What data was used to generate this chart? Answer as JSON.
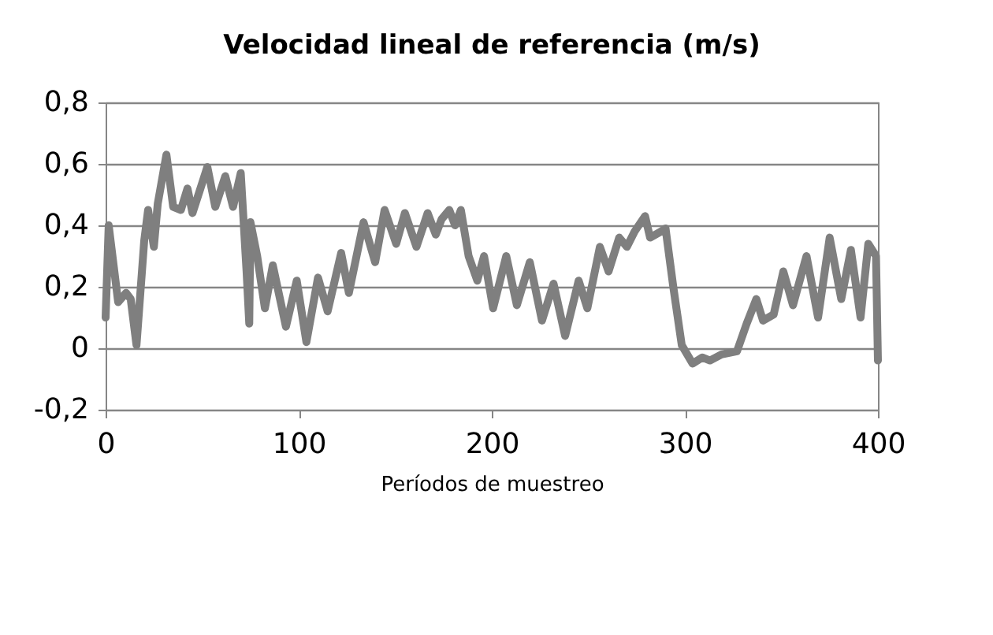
{
  "chart_data": {
    "type": "line",
    "title": "Velocidad lineal de referencia  (m/s)",
    "xlabel": "Períodos de muestreo",
    "series": [
      {
        "color": "#7f7f7f",
        "x": [
          0,
          1.6,
          6.5,
          10.6,
          13,
          16,
          20,
          22,
          25,
          27,
          31.5,
          35,
          39,
          42.4,
          45,
          48.6,
          52.7,
          56.8,
          62,
          66,
          70,
          73,
          74.4,
          75,
          78.5,
          82.5,
          86.6,
          93.4,
          99,
          104,
          110,
          115,
          122,
          126,
          133.6,
          139.6,
          144.5,
          150.5,
          155,
          161,
          166.8,
          171,
          174,
          178,
          181,
          184,
          188,
          192.5,
          196,
          200.7,
          207.5,
          213,
          219.7,
          226,
          232,
          238,
          245,
          249.5,
          256,
          260.5,
          266,
          270,
          274,
          279.4,
          282,
          287.6,
          290,
          294,
          298.4,
          304,
          309,
          313,
          319,
          327,
          332,
          337,
          340.5,
          346,
          351,
          356,
          363,
          369,
          375,
          381,
          386,
          391,
          395,
          399,
          400
        ],
        "values": [
          0.1,
          0.4,
          0.15,
          0.18,
          0.16,
          0.01,
          0.35,
          0.45,
          0.33,
          0.47,
          0.63,
          0.46,
          0.45,
          0.52,
          0.44,
          0.51,
          0.59,
          0.46,
          0.56,
          0.46,
          0.57,
          0.25,
          0.08,
          0.41,
          0.3,
          0.13,
          0.27,
          0.07,
          0.22,
          0.02,
          0.23,
          0.12,
          0.31,
          0.18,
          0.41,
          0.28,
          0.45,
          0.34,
          0.44,
          0.33,
          0.44,
          0.37,
          0.42,
          0.45,
          0.4,
          0.45,
          0.3,
          0.22,
          0.3,
          0.13,
          0.3,
          0.14,
          0.28,
          0.09,
          0.21,
          0.04,
          0.22,
          0.13,
          0.33,
          0.25,
          0.36,
          0.33,
          0.38,
          0.43,
          0.36,
          0.38,
          0.39,
          0.2,
          0.01,
          -0.05,
          -0.03,
          -0.04,
          -0.02,
          -0.01,
          0.08,
          0.16,
          0.09,
          0.11,
          0.25,
          0.14,
          0.3,
          0.1,
          0.36,
          0.16,
          0.32,
          0.1,
          0.34,
          0.3,
          -0.04
        ]
      }
    ],
    "xlim": [
      0,
      400
    ],
    "xticks": [
      0,
      100,
      200,
      300,
      400
    ],
    "ylim": [
      -0.2,
      0.8
    ],
    "yticks": [
      {
        "value": -0.2,
        "label": "-0,2"
      },
      {
        "value": 0,
        "label": "0"
      },
      {
        "value": 0.2,
        "label": "0,2"
      },
      {
        "value": 0.4,
        "label": "0,4"
      },
      {
        "value": 0.6,
        "label": "0,6"
      },
      {
        "value": 0.8,
        "label": "0,8"
      }
    ],
    "grid": "y",
    "marker": "none",
    "line_style": "solid"
  }
}
